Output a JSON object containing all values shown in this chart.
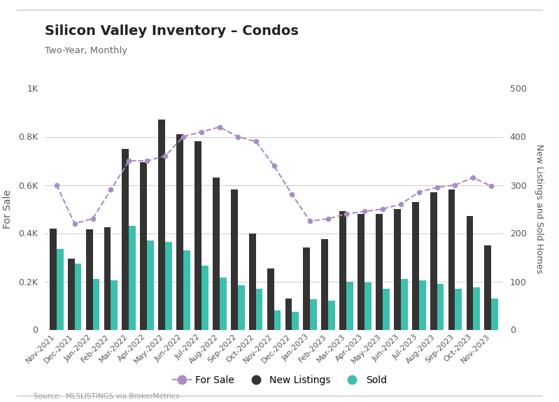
{
  "title": "Silicon Valley Inventory – Condos",
  "subtitle": "Two-Year, Monthly",
  "source": "Source:  MLSLISTINGS via BrokerMetrics",
  "ylabel_left": "For Sale",
  "ylabel_right": "New Listings and Sold Homes",
  "categories": [
    "Nov-2021",
    "Dec-2021",
    "Jan-2022",
    "Feb-2022",
    "Mar-2022",
    "Apr-2022",
    "May-2022",
    "Jun-2022",
    "Jul-2022",
    "Aug-2022",
    "Sep-2022",
    "Oct-2022",
    "Nov-2022",
    "Dec-2022",
    "Jan-2023",
    "Feb-2023",
    "Mar-2023",
    "Apr-2023",
    "May-2023",
    "Jun-2023",
    "Jul-2023",
    "Aug-2023",
    "Sep-2023",
    "Oct-2023",
    "Nov-2023"
  ],
  "for_sale": [
    600,
    440,
    460,
    580,
    700,
    700,
    720,
    800,
    820,
    840,
    800,
    780,
    680,
    560,
    450,
    460,
    480,
    490,
    500,
    520,
    570,
    590,
    600,
    630,
    595
  ],
  "new_listings": [
    420,
    295,
    415,
    425,
    750,
    695,
    870,
    810,
    780,
    630,
    580,
    400,
    255,
    130,
    340,
    375,
    490,
    480,
    480,
    500,
    530,
    570,
    580,
    470,
    350
  ],
  "sold": [
    335,
    275,
    210,
    205,
    430,
    370,
    365,
    330,
    265,
    215,
    185,
    170,
    80,
    75,
    125,
    120,
    200,
    195,
    170,
    210,
    205,
    190,
    170,
    175,
    128
  ],
  "for_sale_color": "#a98ec4",
  "new_listings_color": "#333333",
  "sold_color": "#3dbfad",
  "background_color": "#ffffff",
  "ylim_left": [
    0,
    1000
  ],
  "ylim_right": [
    0,
    500
  ],
  "yticks_left": [
    0,
    200,
    400,
    600,
    800,
    1000
  ],
  "ytick_labels_left": [
    "0",
    "0.2K",
    "0.4K",
    "0.6K",
    "0.8K",
    "1K"
  ],
  "yticks_right": [
    0,
    100,
    200,
    300,
    400,
    500
  ],
  "ytick_labels_right": [
    "0",
    "100",
    "200",
    "300",
    "400",
    "500"
  ],
  "bar_width": 0.38
}
